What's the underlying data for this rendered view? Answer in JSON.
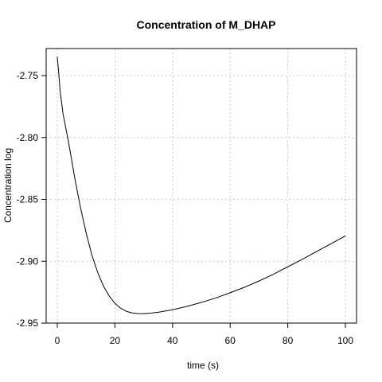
{
  "chart_data": {
    "type": "line",
    "title": "Concentration of M_DHAP",
    "xlabel": "time (s)",
    "ylabel": "Concentration log",
    "xlim": [
      0,
      100
    ],
    "ylim": [
      -2.95,
      -2.73
    ],
    "x_ticks": [
      0,
      20,
      40,
      60,
      80,
      100
    ],
    "y_ticks": [
      -2.95,
      -2.9,
      -2.85,
      -2.8,
      -2.75
    ],
    "x_tick_labels": [
      "0",
      "20",
      "40",
      "60",
      "80",
      "100"
    ],
    "y_tick_labels": [
      "-2.95",
      "-2.90",
      "-2.85",
      "-2.80",
      "-2.75"
    ],
    "grid": true,
    "series": [
      {
        "color": "#000000",
        "x": [
          0,
          0.5,
          1,
          2,
          4,
          6,
          8,
          10,
          12,
          14,
          16,
          18,
          20,
          22,
          24,
          26,
          28,
          30,
          32,
          35,
          40,
          45,
          50,
          55,
          60,
          65,
          70,
          75,
          80,
          85,
          90,
          95,
          100
        ],
        "y": [
          -2.735,
          -2.748,
          -2.763,
          -2.781,
          -2.805,
          -2.832,
          -2.856,
          -2.877,
          -2.895,
          -2.909,
          -2.92,
          -2.928,
          -2.934,
          -2.938,
          -2.9405,
          -2.9418,
          -2.9423,
          -2.9424,
          -2.942,
          -2.9412,
          -2.9392,
          -2.9365,
          -2.9333,
          -2.9297,
          -2.9255,
          -2.921,
          -2.916,
          -2.9105,
          -2.9045,
          -2.8985,
          -2.8922,
          -2.8859,
          -2.8795
        ]
      }
    ]
  }
}
